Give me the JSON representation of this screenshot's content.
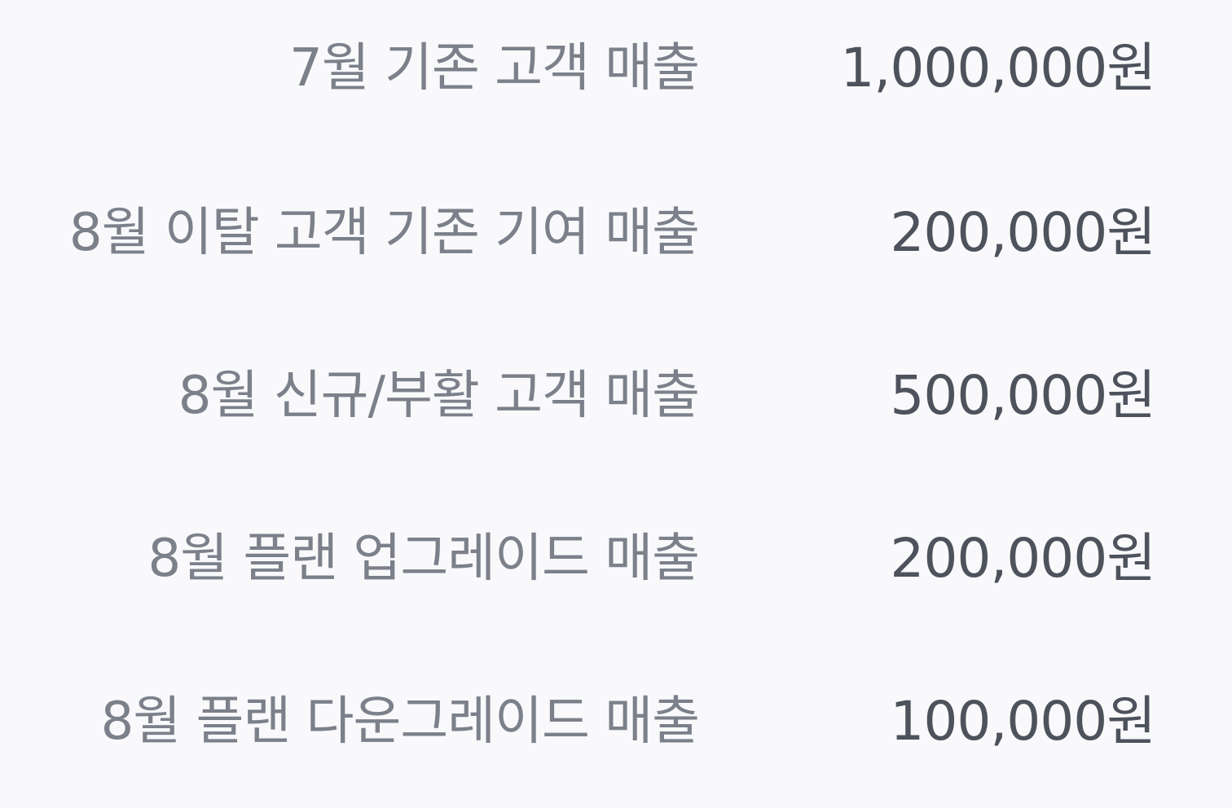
{
  "revenue_summary": {
    "rows": [
      {
        "label": "7월 기존 고객 매출",
        "value": "1,000,000원"
      },
      {
        "label": "8월 이탈 고객 기존 기여 매출",
        "value": "200,000원"
      },
      {
        "label": "8월 신규/부활 고객 매출",
        "value": "500,000원"
      },
      {
        "label": "8월 플랜 업그레이드 매출",
        "value": "200,000원"
      },
      {
        "label": "8월 플랜 다운그레이드 매출",
        "value": "100,000원"
      }
    ]
  },
  "colors": {
    "background": "#f9f9fb",
    "label_text": "#7c808a",
    "value_text": "#4d525c"
  }
}
